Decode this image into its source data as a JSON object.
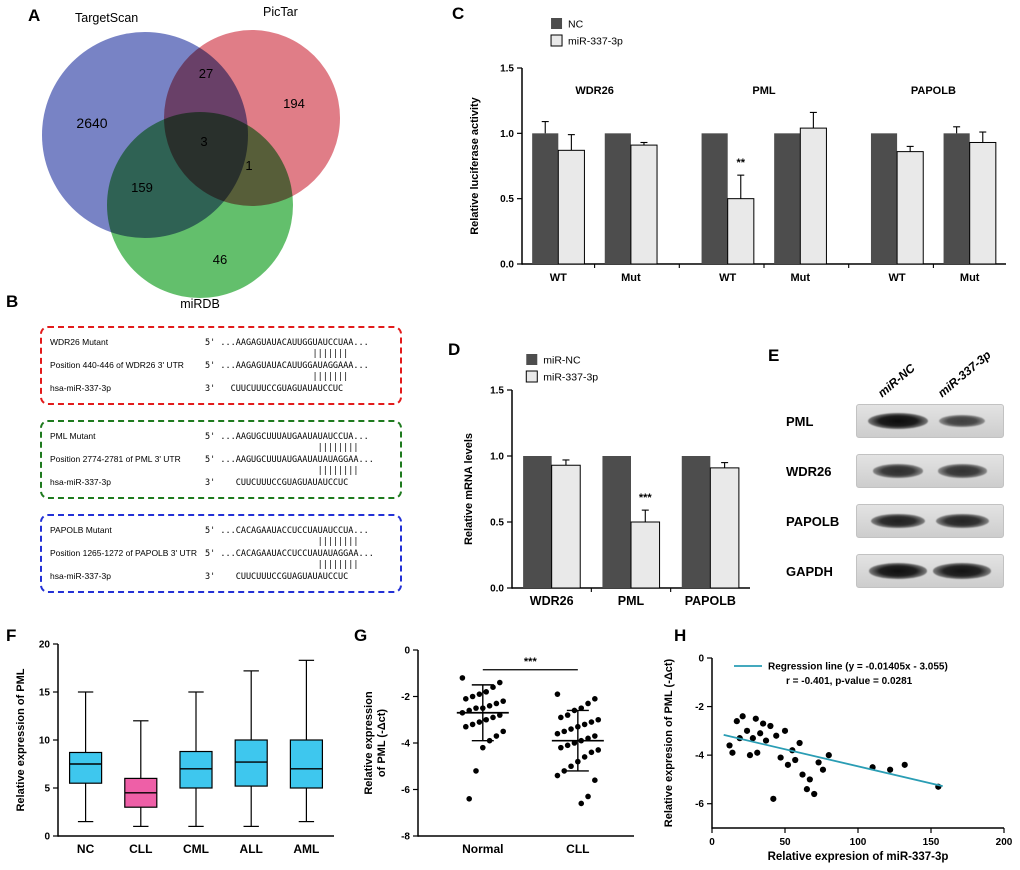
{
  "panel_labels": {
    "A": "A",
    "B": "B",
    "C": "C",
    "D": "D",
    "E": "E",
    "F": "F",
    "G": "G",
    "H": "H"
  },
  "venn": {
    "sets": [
      {
        "name": "TargetScan",
        "color": "#5A68B8"
      },
      {
        "name": "PicTar",
        "color": "#D9606C"
      },
      {
        "name": "miRDB",
        "color": "#41B14C"
      }
    ],
    "counts": {
      "targetscan": "2640",
      "targetscan_pictar": "27",
      "pictar": "194",
      "all_three": "3",
      "targetscan_mirdb": "159",
      "pictar_mirdb": "1",
      "mirdb": "46"
    }
  },
  "alignments": [
    {
      "name": "WDR26",
      "border": "#E21B1B",
      "rows": [
        {
          "label": "WDR26 Mutant",
          "seq": "5' ...AAGAGUAUACAUUGGUAUCCUAA..."
        },
        {
          "label": "Position 440-446 of WDR26 3' UTR",
          "seq": "5' ...AAGAGUAUACAUUGGAUAGGAAA..."
        },
        {
          "label": "hsa-miR-337-3p",
          "seq": "3'   CUUCUUUCCGUAGUAUAUCCUC"
        }
      ],
      "pairs": [
        "                     |||||||",
        "                     |||||||"
      ]
    },
    {
      "name": "PML",
      "border": "#1E7A1E",
      "rows": [
        {
          "label": "PML Mutant",
          "seq": "5' ...AAGUGCUUUAUGAAUAUAUCCUA..."
        },
        {
          "label": "Position 2774-2781 of PML 3' UTR",
          "seq": "5' ...AAGUGCUUUAUGAAUAUAUAGGAA..."
        },
        {
          "label": "hsa-miR-337-3p",
          "seq": "3'    CUUCUUUCCGUAGUAUAUCCUC"
        }
      ],
      "pairs": [
        "                      ||||||||",
        "                      ||||||||"
      ]
    },
    {
      "name": "PAPOLB",
      "border": "#2331D6",
      "rows": [
        {
          "label": "PAPOLB Mutant",
          "seq": "5' ...CACAGAAUACCUCCUAUAUCCUA..."
        },
        {
          "label": "Position 1265-1272 of PAPOLB 3' UTR",
          "seq": "5' ...CACAGAAUACCUCCUAUAUAGGAA..."
        },
        {
          "label": "hsa-miR-337-3p",
          "seq": "3'    CUUCUUUCCGUAGUAUAUCCUC"
        }
      ],
      "pairs": [
        "                      ||||||||",
        "                      ||||||||"
      ]
    }
  ],
  "western": {
    "lane_labels": [
      "miR-NC",
      "miR-337-3p"
    ],
    "rows": [
      {
        "label": "PML",
        "bands": [
          1.0,
          0.55
        ]
      },
      {
        "label": "WDR26",
        "bands": [
          0.7,
          0.66
        ]
      },
      {
        "label": "PAPOLB",
        "bands": [
          0.82,
          0.78
        ]
      },
      {
        "label": "GAPDH",
        "bands": [
          0.96,
          0.93
        ]
      }
    ]
  },
  "chart_data": [
    {
      "id": "C",
      "type": "bar",
      "ylabel": "Relative luciferase activity",
      "ylim": [
        0,
        1.5
      ],
      "yticks": [
        0,
        0.5,
        1,
        1.5
      ],
      "ytick_labels": [
        "0.0",
        "0.5",
        "1.0",
        "1.5"
      ],
      "categories": [
        "WT",
        "Mut",
        "WT",
        "Mut",
        "WT",
        "Mut"
      ],
      "group_size": 2,
      "group_labels": [
        "WDR26",
        "PML",
        "PAPOLB"
      ],
      "group_label_y": 1.3,
      "series": [
        {
          "name": "NC",
          "color": "#4d4d4d",
          "values": [
            1,
            1,
            1,
            1,
            1,
            1
          ],
          "errors": [
            0.09,
            0,
            0,
            0,
            0,
            0.05
          ]
        },
        {
          "name": "miR-337-3p",
          "color": "#e9e9e9",
          "stroke": true,
          "values": [
            0.87,
            0.91,
            0.5,
            1.04,
            0.86,
            0.93
          ],
          "errors": [
            0.12,
            0.02,
            0.18,
            0.12,
            0.04,
            0.08
          ]
        }
      ],
      "annotations": [
        {
          "text": "**",
          "series": 1,
          "category": 2,
          "value": 0.75
        }
      ]
    },
    {
      "id": "D",
      "type": "bar",
      "ylabel": "Relative mRNA levels",
      "ylim": [
        0,
        1.5
      ],
      "yticks": [
        0,
        0.5,
        1,
        1.5
      ],
      "ytick_labels": [
        "0.0",
        "0.5",
        "1.0",
        "1.5"
      ],
      "categories": [
        "WDR26",
        "PML",
        "PAPOLB"
      ],
      "group_size": 1,
      "cat_size": 12.5,
      "series": [
        {
          "name": "miR-NC",
          "color": "#4d4d4d",
          "values": [
            1,
            1,
            1
          ],
          "errors": [
            0,
            0,
            0
          ]
        },
        {
          "name": "miR-337-3p",
          "color": "#e9e9e9",
          "stroke": true,
          "values": [
            0.93,
            0.5,
            0.91
          ],
          "errors": [
            0.04,
            0.09,
            0.04
          ]
        }
      ],
      "annotations": [
        {
          "text": "***",
          "series": 1,
          "category": 1,
          "value": 0.66
        }
      ]
    },
    {
      "id": "F",
      "type": "box",
      "ylabel": "Relative expression of PML",
      "ylim": [
        0,
        20
      ],
      "yticks": [
        0,
        5,
        10,
        15,
        20
      ],
      "ytick_labels": [
        "0",
        "5",
        "10",
        "15",
        "20"
      ],
      "categories": [
        "NC",
        "CLL",
        "CML",
        "ALL",
        "AML"
      ],
      "boxes": [
        {
          "min": 1.5,
          "q1": 5.5,
          "median": 7.5,
          "q3": 8.7,
          "max": 15.0,
          "color": "#3EC7EE"
        },
        {
          "min": 1.0,
          "q1": 3.0,
          "median": 4.5,
          "q3": 6.0,
          "max": 12.0,
          "color": "#EE5FA7"
        },
        {
          "min": 1.0,
          "q1": 5.0,
          "median": 7.0,
          "q3": 8.8,
          "max": 15.0,
          "color": "#3EC7EE"
        },
        {
          "min": 1.0,
          "q1": 5.2,
          "median": 7.7,
          "q3": 10.0,
          "max": 17.2,
          "color": "#3EC7EE"
        },
        {
          "min": 1.5,
          "q1": 5.0,
          "median": 7.0,
          "q3": 10.0,
          "max": 18.3,
          "color": "#3EC7EE"
        }
      ]
    },
    {
      "id": "G",
      "type": "dot",
      "ylabel": [
        "Relative expression",
        "of PML (-Δct)"
      ],
      "ylim": [
        -8,
        0
      ],
      "yticks": [
        0,
        -2,
        -4,
        -6,
        -8
      ],
      "ytick_labels": [
        "0",
        "-2",
        "-4",
        "-6",
        "-8"
      ],
      "categories": [
        "Normal",
        "CLL"
      ],
      "groups": [
        {
          "name": "Normal",
          "mean": -2.7,
          "sd": 1.2,
          "points": [
            -1.2,
            -1.4,
            -1.6,
            -1.8,
            -1.9,
            -2.0,
            -2.1,
            -2.2,
            -2.3,
            -2.4,
            -2.5,
            -2.5,
            -2.6,
            -2.7,
            -2.8,
            -2.9,
            -3.0,
            -3.1,
            -3.2,
            -3.3,
            -3.5,
            -3.7,
            -3.9,
            -4.2,
            -5.2,
            -6.4
          ]
        },
        {
          "name": "CLL",
          "mean": -3.9,
          "sd": 1.3,
          "points": [
            -1.9,
            -2.1,
            -2.3,
            -2.5,
            -2.6,
            -2.8,
            -2.9,
            -3.0,
            -3.1,
            -3.2,
            -3.3,
            -3.4,
            -3.5,
            -3.6,
            -3.7,
            -3.8,
            -3.9,
            -4.0,
            -4.1,
            -4.2,
            -4.3,
            -4.4,
            -4.6,
            -4.8,
            -5.0,
            -5.2,
            -5.4,
            -5.6,
            -6.3,
            -6.6
          ]
        }
      ],
      "significance": {
        "text": "***",
        "y": -0.85
      }
    },
    {
      "id": "H",
      "type": "scatter",
      "xlabel": "Relative expresion of miR-337-3p",
      "ylabel": "Relative expresion of PML (-Δct)",
      "xlim": [
        0,
        200
      ],
      "ylim": [
        -7,
        0
      ],
      "xticks": [
        0,
        50,
        100,
        150,
        200
      ],
      "xtick_labels": [
        "0",
        "50",
        "100",
        "150",
        "200"
      ],
      "yticks": [
        0,
        -2,
        -4,
        -6
      ],
      "ytick_labels": [
        "0",
        "-2",
        "-4",
        "-6"
      ],
      "points": [
        [
          12,
          -3.6
        ],
        [
          14,
          -3.9
        ],
        [
          17,
          -2.6
        ],
        [
          19,
          -3.3
        ],
        [
          21,
          -2.4
        ],
        [
          24,
          -3.0
        ],
        [
          26,
          -4.0
        ],
        [
          28,
          -3.3
        ],
        [
          30,
          -2.5
        ],
        [
          31,
          -3.9
        ],
        [
          33,
          -3.1
        ],
        [
          35,
          -2.7
        ],
        [
          37,
          -3.4
        ],
        [
          40,
          -2.8
        ],
        [
          42,
          -5.8
        ],
        [
          44,
          -3.2
        ],
        [
          47,
          -4.1
        ],
        [
          50,
          -3.0
        ],
        [
          52,
          -4.4
        ],
        [
          55,
          -3.8
        ],
        [
          57,
          -4.2
        ],
        [
          60,
          -3.5
        ],
        [
          62,
          -4.8
        ],
        [
          65,
          -5.4
        ],
        [
          67,
          -5.0
        ],
        [
          70,
          -5.6
        ],
        [
          73,
          -4.3
        ],
        [
          76,
          -4.6
        ],
        [
          80,
          -4.0
        ],
        [
          110,
          -4.5
        ],
        [
          122,
          -4.6
        ],
        [
          132,
          -4.4
        ],
        [
          155,
          -5.3
        ]
      ],
      "regression": {
        "slope": -0.01405,
        "intercept": -3.055,
        "x_range": [
          8,
          158
        ],
        "color": "#2A9DB4"
      },
      "legend": [
        "Regression line (y = -0.01405x - 3.055)",
        "r = -0.401,  p-value = 0.0281"
      ]
    }
  ]
}
